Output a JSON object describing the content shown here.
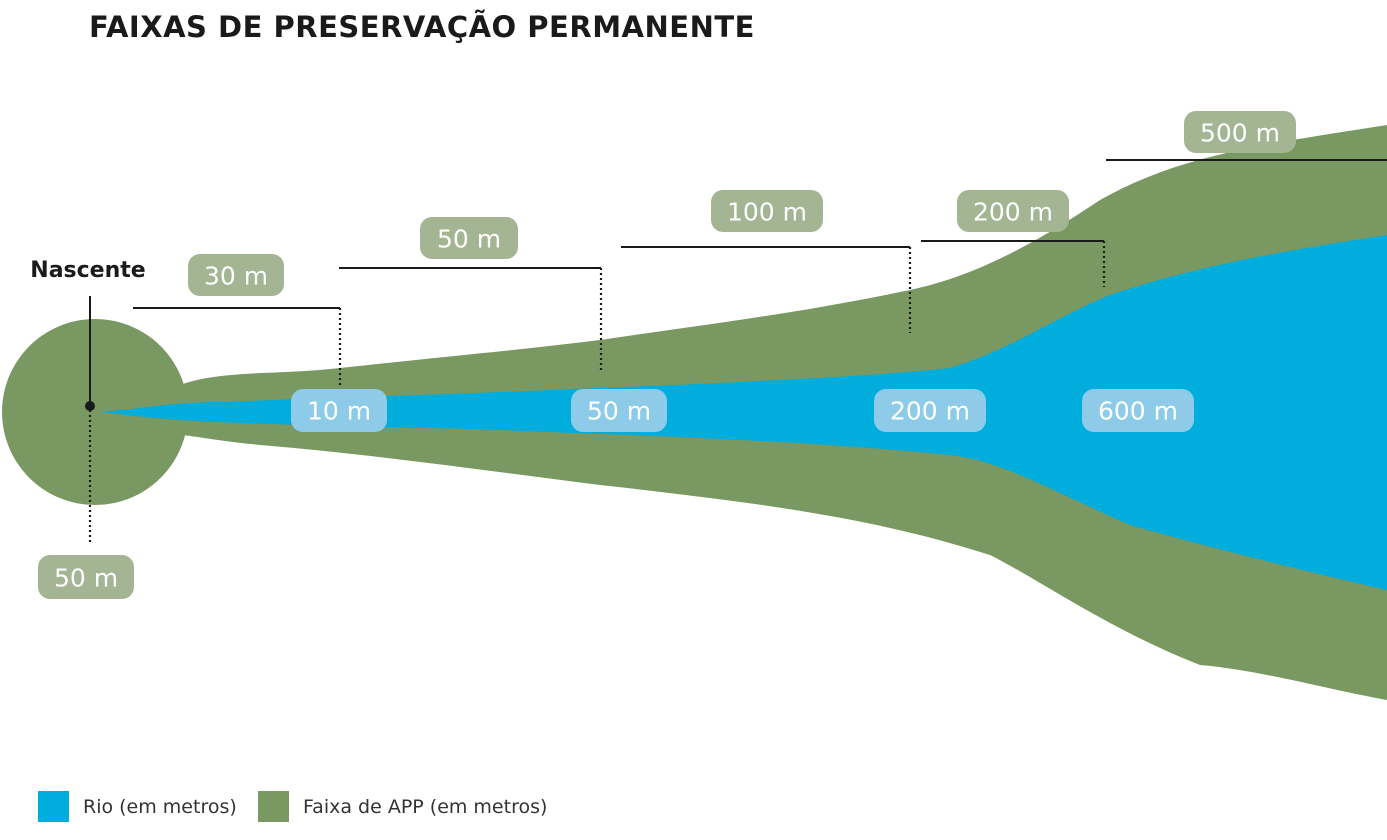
{
  "title": "FAIXAS DE PRESERVAÇÃO PERMANENTE",
  "source_label": "Nascente",
  "source_app": "50 m",
  "river_widths": [
    "10 m",
    "50 m",
    "200 m",
    "600 m"
  ],
  "app_widths": [
    "30 m",
    "50 m",
    "100 m",
    "200 m",
    "500 m"
  ],
  "legend": [
    {
      "label": "Rio (em metros)",
      "color": "#00addc"
    },
    {
      "label": "Faixa de APP (em metros)",
      "color": "#7a9862"
    }
  ],
  "colors": {
    "river": "#00addc",
    "app": "#7a9862",
    "pill_green": "#a4b593",
    "pill_blue": "#8ecbe8"
  }
}
